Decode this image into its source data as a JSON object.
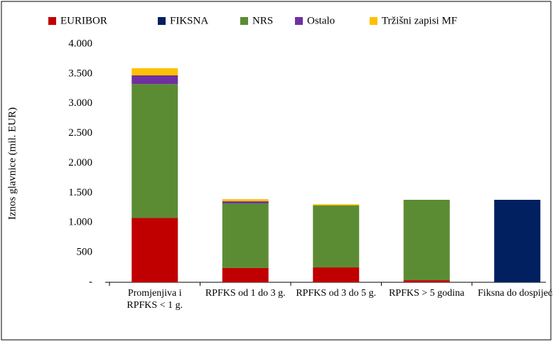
{
  "chart_data": {
    "type": "stacked_bar",
    "y_label": "Iznos glavnice (mil. EUR)",
    "categories": [
      "Promjenjiva i RPFKS < 1 g.",
      "RPFKS od 1 do 3 g.",
      "RPFKS od 3 do 5 g.",
      "RPFKS > 5 godina",
      "Fiksna do dospijeća"
    ],
    "series": [
      {
        "name": "EURIBOR",
        "color": "#c00000",
        "values": [
          1080,
          240,
          250,
          35,
          0
        ]
      },
      {
        "name": "FIKSNA",
        "color": "#002060",
        "values": [
          0,
          0,
          0,
          0,
          1385
        ]
      },
      {
        "name": "NRS",
        "color": "#5b8c34",
        "values": [
          2250,
          1085,
          1040,
          1350,
          0
        ]
      },
      {
        "name": "Ostalo",
        "color": "#7030a0",
        "values": [
          145,
          35,
          0,
          0,
          0
        ]
      },
      {
        "name": "Tržišni zapisi MF",
        "color": "#ffc000",
        "values": [
          120,
          35,
          20,
          0,
          0
        ]
      }
    ],
    "ylim": [
      0,
      4000
    ],
    "yticks": [
      {
        "value": 0,
        "label": "-"
      },
      500,
      {
        "value": 1000,
        "label": "1.000"
      },
      {
        "value": 1500,
        "label": "1.500"
      },
      {
        "value": 2000,
        "label": "2.000"
      },
      {
        "value": 2500,
        "label": "2.500"
      },
      {
        "value": 3000,
        "label": "3.000"
      },
      {
        "value": 3500,
        "label": "3.500"
      },
      {
        "value": 4000,
        "label": "4.000"
      }
    ],
    "legend": "top"
  }
}
